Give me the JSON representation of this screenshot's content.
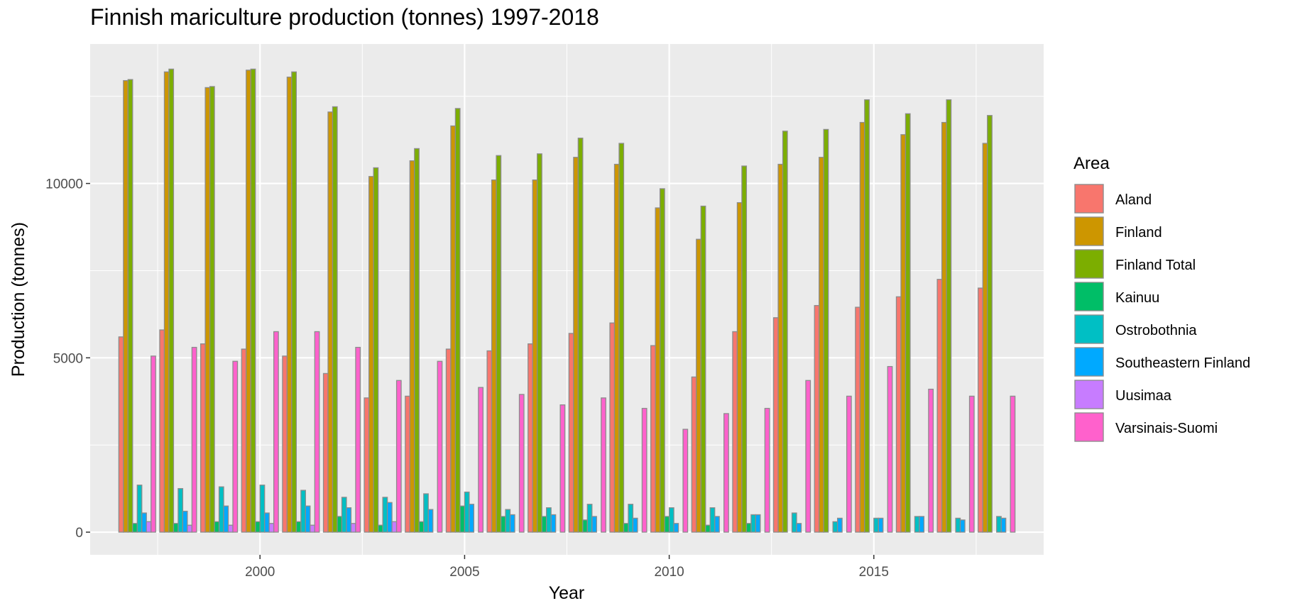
{
  "chart_data": {
    "type": "bar",
    "title": "Finnish mariculture production (tonnes) 1997-2018",
    "xlabel": "Year",
    "ylabel": "Production (tonnes)",
    "legend_title": "Area",
    "legend_position": "right",
    "grid": true,
    "x": [
      1997,
      1998,
      1999,
      2000,
      2001,
      2002,
      2003,
      2004,
      2005,
      2006,
      2007,
      2008,
      2009,
      2010,
      2011,
      2012,
      2013,
      2014,
      2015,
      2016,
      2017,
      2018
    ],
    "x_ticks": [
      2000,
      2005,
      2010,
      2015
    ],
    "xlim": [
      1995.85,
      2019.15
    ],
    "ylim": [
      -650,
      14000
    ],
    "y_ticks": [
      0,
      5000,
      10000
    ],
    "series": [
      {
        "name": "Aland",
        "color": "#F8766D",
        "values": [
          5600,
          5800,
          5400,
          5250,
          5050,
          4550,
          3850,
          3900,
          5250,
          5200,
          5400,
          5700,
          6000,
          5350,
          4450,
          5750,
          6150,
          6500,
          6450,
          6750,
          7250,
          7000
        ]
      },
      {
        "name": "Finland",
        "color": "#CD9600",
        "values": [
          12950,
          13200,
          12750,
          13250,
          13050,
          12050,
          10200,
          10650,
          11650,
          10100,
          10100,
          10750,
          10550,
          9300,
          8400,
          9450,
          10550,
          10750,
          11750,
          11400,
          11750,
          11150
        ]
      },
      {
        "name": "Finland Total",
        "color": "#7CAE00",
        "values": [
          12980,
          13280,
          12780,
          13280,
          13200,
          12200,
          10450,
          11000,
          12150,
          10800,
          10850,
          11300,
          11150,
          9850,
          9350,
          10500,
          11500,
          11550,
          12400,
          12000,
          12400,
          11950
        ]
      },
      {
        "name": "Kainuu",
        "color": "#00BE67",
        "values": [
          250,
          250,
          300,
          300,
          300,
          450,
          200,
          300,
          750,
          450,
          450,
          350,
          250,
          450,
          200,
          250,
          0,
          0,
          0,
          0,
          0,
          0
        ]
      },
      {
        "name": "Ostrobothnia",
        "color": "#00BFC4",
        "values": [
          1350,
          1250,
          1300,
          1350,
          1200,
          1000,
          1000,
          1100,
          1150,
          650,
          700,
          800,
          800,
          700,
          700,
          500,
          550,
          300,
          400,
          450,
          400,
          450
        ]
      },
      {
        "name": "Southeastern Finland",
        "color": "#00A9FF",
        "values": [
          550,
          600,
          750,
          550,
          750,
          700,
          850,
          650,
          800,
          500,
          500,
          450,
          400,
          250,
          450,
          500,
          250,
          400,
          400,
          450,
          350,
          400
        ]
      },
      {
        "name": "Uusimaa",
        "color": "#C77CFF",
        "values": [
          300,
          200,
          200,
          250,
          200,
          250,
          300,
          0,
          0,
          0,
          0,
          0,
          0,
          0,
          0,
          0,
          0,
          0,
          0,
          0,
          0,
          0
        ]
      },
      {
        "name": "Varsinais-Suomi",
        "color": "#FF61CC",
        "values": [
          5050,
          5300,
          4900,
          5750,
          5750,
          5300,
          4350,
          4900,
          4150,
          3950,
          3650,
          3850,
          3550,
          2950,
          3400,
          3550,
          4350,
          3900,
          4750,
          4100,
          3900,
          3900
        ]
      }
    ]
  }
}
